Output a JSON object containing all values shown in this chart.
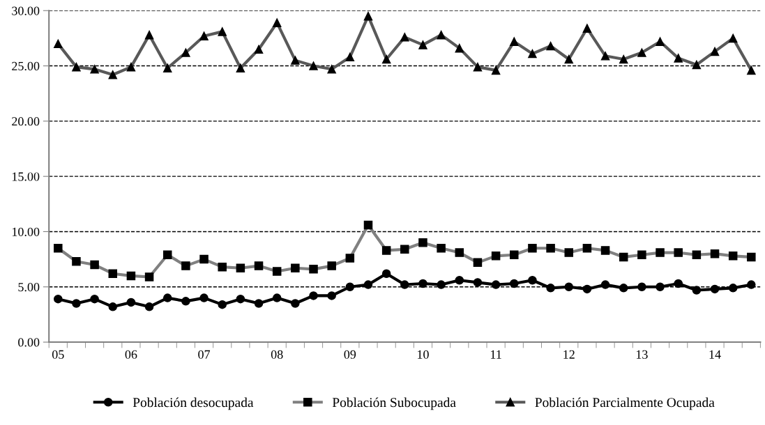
{
  "chart_data": {
    "type": "line",
    "categories": [
      "05",
      null,
      null,
      null,
      "06",
      null,
      null,
      null,
      "07",
      null,
      null,
      null,
      "08",
      null,
      null,
      null,
      "09",
      null,
      null,
      null,
      "10",
      null,
      null,
      null,
      "11",
      null,
      null,
      null,
      "12",
      null,
      null,
      null,
      "13",
      null,
      null,
      null,
      "14",
      null,
      null
    ],
    "series": [
      {
        "name": "Población desocupada",
        "color": "#000000",
        "marker": "circle",
        "values": [
          3.9,
          3.5,
          3.9,
          3.2,
          3.6,
          3.2,
          4.0,
          3.7,
          4.0,
          3.4,
          3.9,
          3.5,
          4.0,
          3.5,
          4.2,
          4.2,
          5.0,
          5.2,
          6.2,
          5.2,
          5.3,
          5.2,
          5.6,
          5.4,
          5.2,
          5.3,
          5.6,
          4.9,
          5.0,
          4.8,
          5.2,
          4.9,
          5.0,
          5.0,
          5.3,
          4.7,
          4.8,
          4.9,
          5.2
        ]
      },
      {
        "name": "Población Subocupada",
        "color": "#808080",
        "marker": "square",
        "values": [
          8.5,
          7.3,
          7.0,
          6.2,
          6.0,
          5.9,
          7.9,
          6.9,
          7.5,
          6.8,
          6.7,
          6.9,
          6.4,
          6.7,
          6.6,
          6.9,
          7.6,
          10.6,
          8.3,
          8.4,
          9.0,
          8.5,
          8.1,
          7.2,
          7.8,
          7.9,
          8.5,
          8.5,
          8.1,
          8.5,
          8.3,
          7.7,
          7.9,
          8.1,
          8.1,
          7.9,
          8.0,
          7.8,
          7.7
        ]
      },
      {
        "name": "Población Parcialmente Ocupada",
        "color": "#595959",
        "marker": "triangle",
        "values": [
          27.0,
          24.9,
          24.7,
          24.2,
          24.9,
          27.8,
          24.8,
          26.2,
          27.7,
          28.1,
          24.8,
          26.5,
          28.9,
          25.5,
          25.0,
          24.7,
          25.8,
          29.5,
          25.6,
          27.6,
          26.9,
          27.8,
          26.6,
          24.9,
          24.6,
          27.2,
          26.1,
          26.8,
          25.6,
          28.4,
          25.9,
          25.6,
          26.2,
          27.2,
          25.7,
          25.1,
          26.3,
          27.5,
          24.6
        ]
      }
    ],
    "ylim": [
      0,
      30
    ],
    "yticks": [
      {
        "value": 0,
        "label": "0.00"
      },
      {
        "value": 5,
        "label": "5.00"
      },
      {
        "value": 10,
        "label": "10.00"
      },
      {
        "value": 15,
        "label": "15.00"
      },
      {
        "value": 20,
        "label": "20.00"
      },
      {
        "value": 25,
        "label": "25.00"
      },
      {
        "value": 30,
        "label": "30.00"
      }
    ],
    "grid": "y",
    "legend": "bottom",
    "line_style": "solid"
  }
}
